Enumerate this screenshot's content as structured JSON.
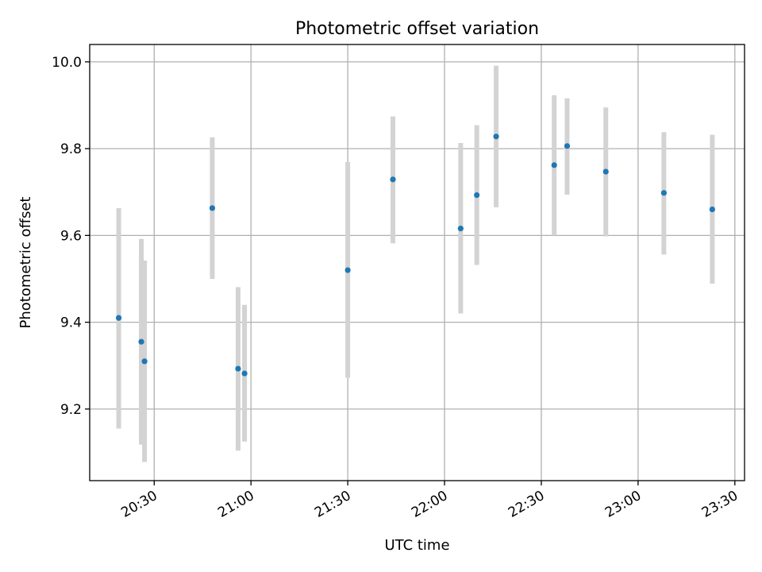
{
  "chart_data": {
    "type": "scatter",
    "title": "Photometric offset variation",
    "xlabel": "UTC time",
    "ylabel": "Photometric offset",
    "x_tick_labels": [
      "20:30",
      "21:00",
      "21:30",
      "22:00",
      "22:30",
      "23:00",
      "23:30"
    ],
    "x_tick_values": [
      "20:30",
      "21:00",
      "21:30",
      "22:00",
      "22:30",
      "23:00",
      "23:30"
    ],
    "y_tick_labels": [
      "9.2",
      "9.4",
      "9.6",
      "9.8",
      "10.0"
    ],
    "y_tick_values": [
      9.2,
      9.4,
      9.6,
      9.8,
      10.0
    ],
    "xlim": [
      "20:10",
      "23:33"
    ],
    "ylim": [
      9.035,
      10.04
    ],
    "grid": true,
    "errorbar_color": "#d3d3d3",
    "point_color": "#1f77b4",
    "points": [
      {
        "x": "20:19",
        "y": 9.41,
        "yerr_low": 9.155,
        "yerr_high": 9.663
      },
      {
        "x": "20:26",
        "y": 9.355,
        "yerr_low": 9.118,
        "yerr_high": 9.592
      },
      {
        "x": "20:27",
        "y": 9.31,
        "yerr_low": 9.078,
        "yerr_high": 9.542
      },
      {
        "x": "20:48",
        "y": 9.663,
        "yerr_low": 9.5,
        "yerr_high": 9.826
      },
      {
        "x": "20:56",
        "y": 9.293,
        "yerr_low": 9.104,
        "yerr_high": 9.481
      },
      {
        "x": "20:58",
        "y": 9.282,
        "yerr_low": 9.125,
        "yerr_high": 9.44
      },
      {
        "x": "21:30",
        "y": 9.52,
        "yerr_low": 9.272,
        "yerr_high": 9.769
      },
      {
        "x": "21:44",
        "y": 9.729,
        "yerr_low": 9.582,
        "yerr_high": 9.874
      },
      {
        "x": "22:05",
        "y": 9.616,
        "yerr_low": 9.42,
        "yerr_high": 9.813
      },
      {
        "x": "22:10",
        "y": 9.693,
        "yerr_low": 9.532,
        "yerr_high": 9.854
      },
      {
        "x": "22:16",
        "y": 9.828,
        "yerr_low": 9.665,
        "yerr_high": 9.991
      },
      {
        "x": "22:34",
        "y": 9.762,
        "yerr_low": 9.6,
        "yerr_high": 9.923
      },
      {
        "x": "22:38",
        "y": 9.806,
        "yerr_low": 9.694,
        "yerr_high": 9.916
      },
      {
        "x": "22:50",
        "y": 9.747,
        "yerr_low": 9.598,
        "yerr_high": 9.895
      },
      {
        "x": "23:08",
        "y": 9.698,
        "yerr_low": 9.556,
        "yerr_high": 9.838
      },
      {
        "x": "23:23",
        "y": 9.66,
        "yerr_low": 9.489,
        "yerr_high": 9.832
      }
    ]
  }
}
